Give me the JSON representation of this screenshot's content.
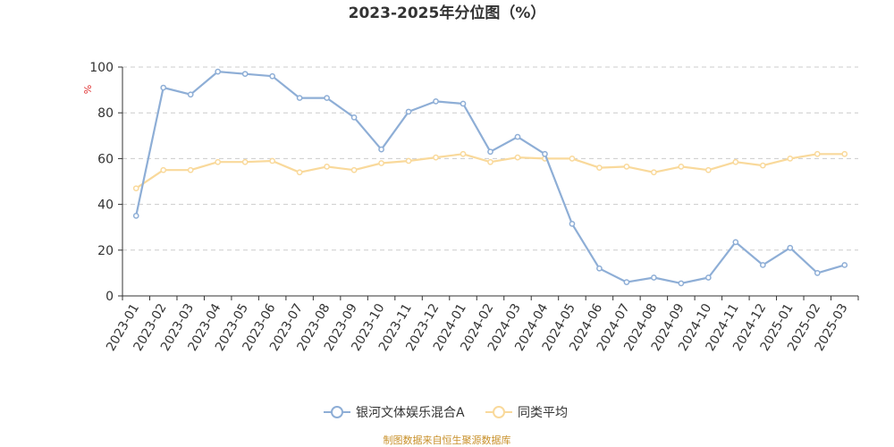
{
  "chart_data": {
    "type": "line",
    "title": "2023-2025年分位图（%）",
    "ylabel": "%",
    "xlabel": "",
    "ylim": [
      0,
      100
    ],
    "yticks": [
      0,
      20,
      40,
      60,
      80,
      100
    ],
    "grid": true,
    "legend_position": "bottom",
    "categories": [
      "2023-01",
      "2023-02",
      "2023-03",
      "2023-04",
      "2023-05",
      "2023-06",
      "2023-07",
      "2023-08",
      "2023-09",
      "2023-10",
      "2023-11",
      "2023-12",
      "2024-01",
      "2024-02",
      "2024-03",
      "2024-04",
      "2024-05",
      "2024-06",
      "2024-07",
      "2024-08",
      "2024-09",
      "2024-10",
      "2024-11",
      "2024-12",
      "2025-01",
      "2025-02",
      "2025-03"
    ],
    "series": [
      {
        "name": "银河文体娱乐混合A",
        "color": "#8eaed6",
        "values": [
          35,
          91,
          88,
          98,
          97,
          96,
          86.5,
          86.5,
          78,
          64,
          80.5,
          85,
          84,
          63,
          69.5,
          62,
          31.5,
          12,
          6,
          8,
          5.5,
          8,
          23.5,
          13.5,
          21,
          10,
          13.5
        ]
      },
      {
        "name": "同类平均",
        "color": "#f9d99b",
        "values": [
          47,
          55,
          55,
          58.5,
          58.5,
          59,
          54,
          56.5,
          55,
          58,
          59,
          60.5,
          62,
          58.5,
          60.5,
          60,
          60,
          56,
          56.5,
          54,
          56.5,
          55,
          58.5,
          57,
          60,
          62,
          62
        ]
      }
    ]
  },
  "footer": {
    "source": "制图数据来自恒生聚源数据库"
  }
}
